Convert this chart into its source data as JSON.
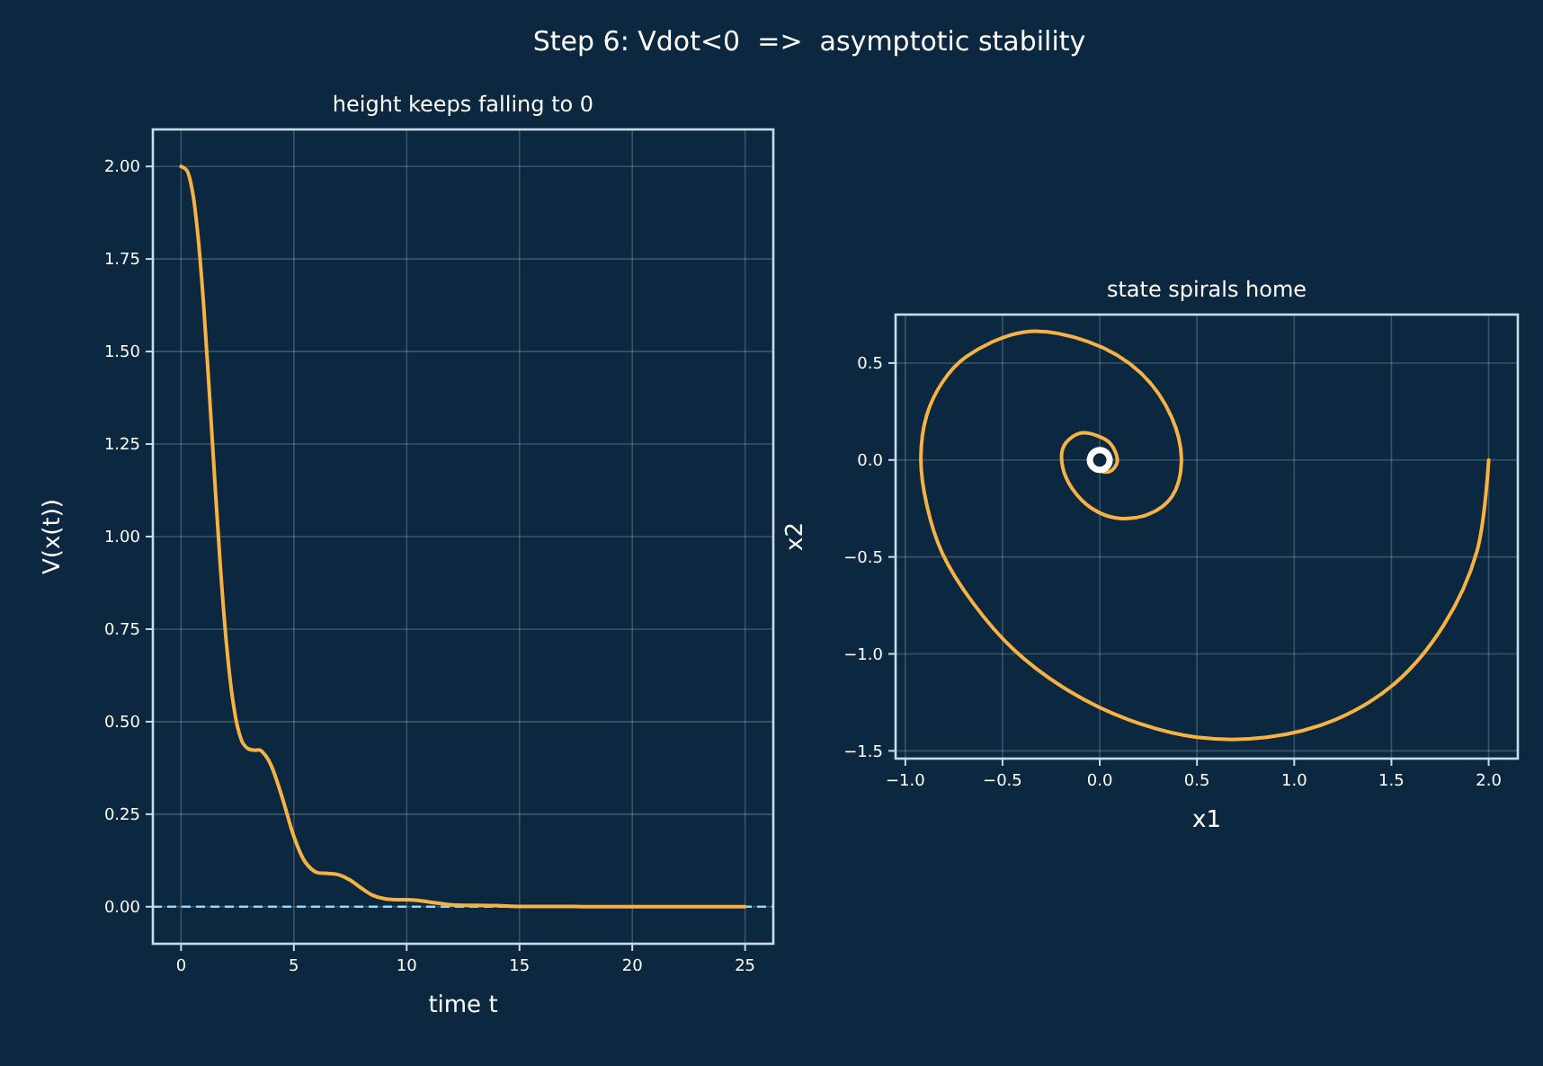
{
  "chart_data": [
    {
      "type": "line",
      "title": "Step 6: Vdot<0  =>  asymptotic stability",
      "subtitle": "height keeps falling to 0",
      "xlabel": "time t",
      "ylabel": "V(x(t))",
      "x": [
        0,
        0.25,
        0.5,
        0.75,
        1,
        1.25,
        1.5,
        1.75,
        2,
        2.25,
        2.5,
        2.75,
        3,
        3.25,
        3.5,
        3.75,
        4,
        4.5,
        5,
        5.5,
        6,
        6.5,
        7,
        7.5,
        8,
        8.5,
        9,
        9.5,
        10,
        10.5,
        11,
        12,
        13,
        14,
        15,
        16,
        17,
        18,
        20,
        22,
        25
      ],
      "series": [
        {
          "color": "#f7b244",
          "values": [
            2,
            1.99,
            1.934,
            1.812,
            1.626,
            1.393,
            1.146,
            0.912,
            0.719,
            0.577,
            0.487,
            0.441,
            0.426,
            0.423,
            0.423,
            0.408,
            0.381,
            0.292,
            0.19,
            0.121,
            0.093,
            0.09,
            0.086,
            0.072,
            0.05,
            0.031,
            0.022,
            0.019,
            0.019,
            0.017,
            0.013,
            0.005,
            0.004,
            0.003,
            0.001,
            0.001,
            0.001,
            0,
            0,
            0,
            0
          ]
        }
      ],
      "xlim": [
        -1.25,
        26.25
      ],
      "ylim": [
        -0.1,
        2.1
      ],
      "xticks": [
        0,
        5,
        10,
        15,
        20,
        25
      ],
      "yticks": [
        {
          "value": 0,
          "label": "0.00"
        },
        {
          "value": 0.25,
          "label": "0.25"
        },
        {
          "value": 0.5,
          "label": "0.50"
        },
        {
          "value": 0.75,
          "label": "0.75"
        },
        {
          "value": 1,
          "label": "1.00"
        },
        {
          "value": 1.25,
          "label": "1.25"
        },
        {
          "value": 1.5,
          "label": "1.50"
        },
        {
          "value": 1.75,
          "label": "1.75"
        },
        {
          "value": 2,
          "label": "2.00"
        }
      ],
      "ref_lines": [
        {
          "axis": "y",
          "value": 0,
          "color": "#8fd6f5",
          "line_style": "dashed"
        }
      ],
      "grid": true,
      "marker": "none",
      "line_style": "solid"
    },
    {
      "type": "line",
      "title": "state spirals home",
      "xlabel": "x1",
      "ylabel": "x2",
      "series": [
        {
          "color": "#f7b244",
          "x": [
            2,
            1.94,
            1.77,
            1.52,
            1.21,
            0.86,
            0.5,
            0.15,
            -0.16,
            -0.44,
            -0.65,
            -0.81,
            -0.89,
            -0.92,
            -0.89,
            -0.81,
            -0.69,
            -0.39,
            -0.06,
            0.21,
            0.37,
            0.42,
            0.37,
            0.25,
            0.09,
            -0.04,
            -0.14,
            -0.19,
            -0.19,
            -0.14,
            -0.08,
            0.05,
            0.09,
            0.05,
            -0.01,
            -0.04
          ],
          "values": [
            0,
            -0.47,
            -0.85,
            -1.15,
            -1.34,
            -1.43,
            -1.43,
            -1.34,
            -1.19,
            -0.98,
            -0.74,
            -0.48,
            -0.23,
            0.01,
            0.23,
            0.4,
            0.53,
            0.66,
            0.61,
            0.45,
            0.22,
            -0.01,
            -0.19,
            -0.28,
            -0.3,
            -0.25,
            -0.15,
            -0.04,
            0.06,
            0.12,
            0.14,
            0.09,
            -0.01,
            -0.06,
            -0.05,
            -0.01
          ]
        },
        {
          "type": "scatter",
          "color": "#ffffff",
          "x": [
            0
          ],
          "values": [
            0
          ],
          "marker": "circle"
        }
      ],
      "xlim": [
        -1.05,
        2.15
      ],
      "ylim": [
        -1.54,
        0.75
      ],
      "xticks": [
        {
          "value": -1,
          "label": "−1.0"
        },
        {
          "value": -0.5,
          "label": "−0.5"
        },
        {
          "value": 0,
          "label": "0.0"
        },
        {
          "value": 0.5,
          "label": "0.5"
        },
        {
          "value": 1,
          "label": "1.0"
        },
        {
          "value": 1.5,
          "label": "1.5"
        },
        {
          "value": 2,
          "label": "2.0"
        }
      ],
      "yticks": [
        {
          "value": -1.5,
          "label": "−1.5"
        },
        {
          "value": -1,
          "label": "−1.0"
        },
        {
          "value": -0.5,
          "label": "−0.5"
        },
        {
          "value": 0,
          "label": "0.0"
        },
        {
          "value": 0.5,
          "label": "0.5"
        }
      ],
      "grid": true,
      "marker": "none",
      "line_style": "solid"
    }
  ]
}
